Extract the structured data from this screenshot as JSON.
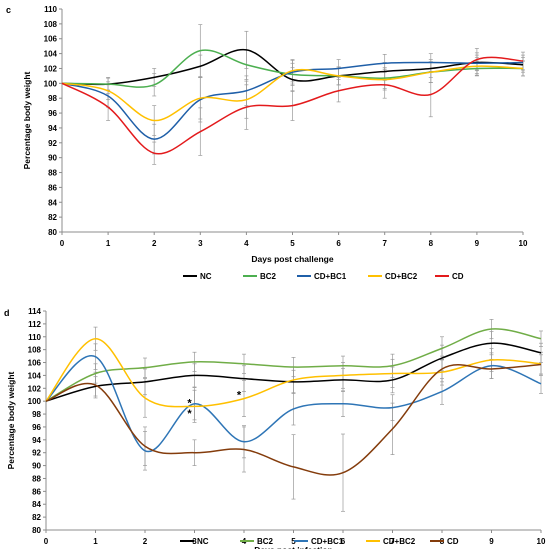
{
  "chart_data": [
    {
      "panel": "c",
      "type": "line",
      "xlabel": "Days post challenge",
      "ylabel": "Percentage body weight",
      "x": [
        0,
        1,
        2,
        3,
        4,
        5,
        6,
        7,
        8,
        9,
        10
      ],
      "xlim": [
        0,
        10
      ],
      "ylim": [
        80,
        110
      ],
      "ytick_step": 2,
      "grid": false,
      "legend_position": "bottom",
      "series": [
        {
          "name": "NC",
          "color": "#000000",
          "values": [
            100,
            99.9,
            100.8,
            102.3,
            104.5,
            100.5,
            101,
            101.6,
            102,
            102.8,
            102.5
          ],
          "errors": [
            0,
            0.8,
            1.2,
            1.5,
            2.5,
            1.6,
            1.2,
            1.2,
            1.2,
            1,
            1
          ]
        },
        {
          "name": "BC2",
          "color": "#4CAF50",
          "values": [
            100,
            99.9,
            99.8,
            104.4,
            102.5,
            101.2,
            101,
            100.7,
            101.5,
            102,
            102
          ],
          "errors": [
            0,
            0.9,
            1.5,
            3.5,
            2,
            1.5,
            1.2,
            1.4,
            1.4,
            1,
            1
          ]
        },
        {
          "name": "CD+BC1",
          "color": "#1F5FA8",
          "values": [
            100,
            98.3,
            92.5,
            97.8,
            99,
            101.5,
            102,
            102.7,
            102.8,
            102.7,
            102.8
          ],
          "errors": [
            0,
            1.5,
            2,
            3,
            2,
            1.6,
            1.2,
            1.2,
            1.2,
            1.4,
            1
          ]
        },
        {
          "name": "CD+BC2",
          "color": "#FFC000",
          "values": [
            100,
            99,
            95,
            98,
            97.8,
            101.7,
            101,
            100.5,
            101.5,
            102.3,
            102
          ],
          "errors": [
            0,
            1.2,
            2,
            2.8,
            2.5,
            1.5,
            1.2,
            1.4,
            1.4,
            1.2,
            1
          ]
        },
        {
          "name": "CD",
          "color": "#E31A1C",
          "values": [
            100,
            96.8,
            90.6,
            93.5,
            96.8,
            97,
            99,
            99.8,
            98.5,
            103.2,
            103
          ],
          "errors": [
            0,
            1.8,
            1.5,
            3.2,
            3,
            2,
            1.5,
            1.8,
            3,
            1.5,
            1.2
          ]
        }
      ]
    },
    {
      "panel": "d",
      "type": "line",
      "xlabel": "Days post infection",
      "ylabel": "Percentage body weight",
      "x": [
        0,
        1,
        2,
        3,
        4,
        5,
        6,
        7,
        8,
        9,
        10
      ],
      "xlim": [
        0,
        10
      ],
      "ylim": [
        80,
        114
      ],
      "ytick_step": 2,
      "grid": false,
      "legend_position": "bottom",
      "annotations": [
        {
          "text": "*",
          "x": 2.9,
          "y": 99.8
        },
        {
          "text": "*",
          "x": 2.9,
          "y": 98.2
        },
        {
          "text": "*",
          "x": 3.9,
          "y": 101
        }
      ],
      "series": [
        {
          "name": "NC",
          "color": "#000000",
          "values": [
            100,
            102.3,
            103,
            104,
            103.5,
            103,
            103.3,
            103.3,
            106.7,
            109,
            107.5
          ],
          "errors": [
            0,
            1.5,
            2,
            1.8,
            2,
            1.8,
            1.8,
            2,
            2,
            1.8,
            1.5
          ]
        },
        {
          "name": "BC2",
          "color": "#70AD47",
          "values": [
            100,
            104.3,
            105.2,
            106.1,
            105.8,
            105.3,
            105.5,
            105.5,
            108.2,
            111.2,
            109.7
          ],
          "errors": [
            0,
            1.5,
            1.5,
            1.5,
            1.5,
            1.5,
            1.5,
            1.8,
            1.8,
            1.5,
            1.2
          ]
        },
        {
          "name": "CD+BC1",
          "color": "#2E75B6",
          "values": [
            100,
            106.9,
            92.3,
            99.6,
            93.7,
            98.8,
            99.6,
            99,
            101.5,
            105.5,
            102.7
          ],
          "errors": [
            0,
            2,
            3,
            2.5,
            2.5,
            2.5,
            2,
            2,
            2,
            2,
            1.5
          ]
        },
        {
          "name": "CD+BC2",
          "color": "#FFC000",
          "values": [
            100,
            109.7,
            100.5,
            99.2,
            100.4,
            103.3,
            104,
            104.3,
            104.5,
            106.4,
            105.8
          ],
          "errors": [
            0,
            1.8,
            3,
            2.5,
            2.8,
            2,
            2,
            2.2,
            2,
            1.8,
            1.8
          ]
        },
        {
          "name": "CD",
          "color": "#843C0C",
          "values": [
            100,
            102.5,
            93,
            92,
            92.5,
            89.8,
            88.9,
            95.7,
            105,
            105,
            105.7
          ],
          "errors": [
            0,
            2,
            3,
            2,
            3.5,
            5,
            6,
            4,
            2,
            1.5,
            1.5
          ]
        }
      ]
    }
  ]
}
